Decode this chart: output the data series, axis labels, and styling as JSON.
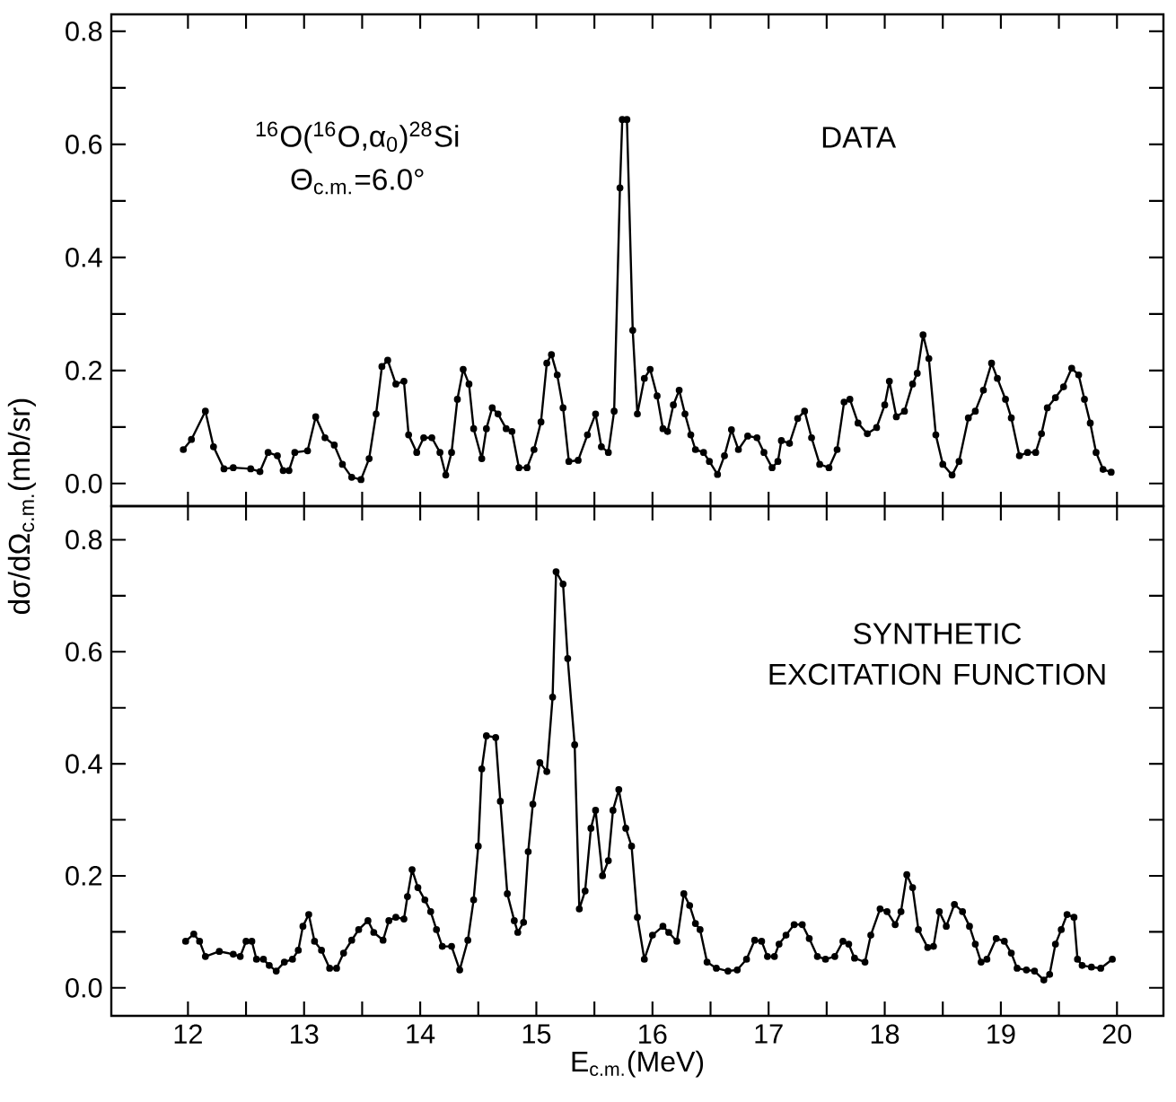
{
  "chart_data": [
    {
      "type": "line",
      "xlim": [
        11.34,
        20.4
      ],
      "ylim": [
        -0.04,
        0.83
      ],
      "xticks": [
        12,
        {
          "value": 12.5,
          "label": null
        },
        13,
        {
          "value": 13.5,
          "label": null
        },
        14,
        {
          "value": 14.5,
          "label": null
        },
        15,
        {
          "value": 15.5,
          "label": null
        },
        16,
        {
          "value": 16.5,
          "label": null
        },
        17,
        {
          "value": 17.5,
          "label": null
        },
        18,
        {
          "value": 18.5,
          "label": null
        },
        19,
        {
          "value": 19.5,
          "label": null
        },
        20
      ],
      "yticks": [
        {
          "value": 0,
          "label": "0.0"
        },
        {
          "value": 0.1,
          "label": null
        },
        0.2,
        {
          "value": 0.3,
          "label": null
        },
        0.4,
        {
          "value": 0.5,
          "label": null
        },
        0.6,
        {
          "value": 0.7,
          "label": null
        },
        0.8
      ],
      "tick_labels": "y",
      "marker": "circle",
      "line_style": "solid",
      "annotations": [
        "$^{16}$O($^{16}$O,α$_{0}$)$^{28}$Si",
        "Θ$_{c.m.}$=6.0°",
        "DATA"
      ],
      "series": [
        {
          "color": "#000000",
          "x": [
            11.96,
            12.03,
            12.15,
            12.22,
            12.31,
            12.39,
            12.54,
            12.62,
            12.69,
            12.77,
            12.82,
            12.87,
            12.92,
            13.03,
            13.1,
            13.18,
            13.26,
            13.33,
            13.41,
            13.49,
            13.56,
            13.62,
            13.67,
            13.72,
            13.79,
            13.86,
            13.9,
            13.97,
            14.03,
            14.1,
            14.17,
            14.22,
            14.27,
            14.32,
            14.37,
            14.42,
            14.46,
            14.53,
            14.57,
            14.62,
            14.67,
            14.74,
            14.79,
            14.85,
            14.92,
            14.98,
            15.04,
            15.09,
            15.13,
            15.18,
            15.23,
            15.28,
            15.36,
            15.44,
            15.51,
            15.56,
            15.62,
            15.67,
            15.72,
            15.74,
            15.78,
            15.83,
            15.87,
            15.93,
            15.98,
            16.04,
            16.09,
            16.13,
            16.18,
            16.23,
            16.28,
            16.33,
            16.37,
            16.44,
            16.49,
            16.56,
            16.62,
            16.68,
            16.74,
            16.82,
            16.9,
            16.96,
            17.03,
            17.08,
            17.11,
            17.18,
            17.25,
            17.31,
            17.37,
            17.44,
            17.52,
            17.59,
            17.65,
            17.7,
            17.77,
            17.85,
            17.93,
            18.0,
            18.04,
            18.1,
            18.17,
            18.24,
            18.28,
            18.33,
            18.38,
            18.44,
            18.5,
            18.58,
            18.64,
            18.72,
            18.78,
            18.85,
            18.92,
            18.97,
            19.04,
            19.09,
            19.16,
            19.23,
            19.3,
            19.35,
            19.4,
            19.47,
            19.54,
            19.61,
            19.67,
            19.72,
            19.77,
            19.82,
            19.88,
            19.95
          ],
          "values": [
            0.06,
            0.078,
            0.128,
            0.065,
            0.026,
            0.028,
            0.026,
            0.021,
            0.055,
            0.049,
            0.023,
            0.023,
            0.055,
            0.058,
            0.118,
            0.081,
            0.068,
            0.034,
            0.011,
            0.007,
            0.044,
            0.123,
            0.207,
            0.218,
            0.176,
            0.181,
            0.086,
            0.055,
            0.081,
            0.081,
            0.055,
            0.015,
            0.055,
            0.149,
            0.202,
            0.176,
            0.097,
            0.044,
            0.097,
            0.134,
            0.123,
            0.097,
            0.092,
            0.028,
            0.028,
            0.06,
            0.109,
            0.213,
            0.228,
            0.192,
            0.134,
            0.039,
            0.041,
            0.086,
            0.123,
            0.065,
            0.055,
            0.128,
            0.523,
            0.644,
            0.644,
            0.271,
            0.123,
            0.186,
            0.202,
            0.155,
            0.097,
            0.092,
            0.139,
            0.165,
            0.123,
            0.086,
            0.06,
            0.055,
            0.039,
            0.016,
            0.049,
            0.095,
            0.06,
            0.084,
            0.081,
            0.055,
            0.028,
            0.039,
            0.076,
            0.071,
            0.115,
            0.128,
            0.081,
            0.034,
            0.028,
            0.06,
            0.144,
            0.149,
            0.107,
            0.088,
            0.099,
            0.139,
            0.181,
            0.118,
            0.128,
            0.176,
            0.195,
            0.263,
            0.221,
            0.086,
            0.034,
            0.015,
            0.039,
            0.116,
            0.128,
            0.165,
            0.213,
            0.186,
            0.149,
            0.116,
            0.049,
            0.055,
            0.055,
            0.088,
            0.134,
            0.152,
            0.171,
            0.204,
            0.192,
            0.149,
            0.107,
            0.055,
            0.025,
            0.02
          ]
        }
      ]
    },
    {
      "type": "line",
      "xlim": [
        11.34,
        20.4
      ],
      "ylim": [
        -0.05,
        0.86
      ],
      "xticks": [
        12,
        {
          "value": 12.5,
          "label": null
        },
        13,
        {
          "value": 13.5,
          "label": null
        },
        14,
        {
          "value": 14.5,
          "label": null
        },
        15,
        {
          "value": 15.5,
          "label": null
        },
        16,
        {
          "value": 16.5,
          "label": null
        },
        17,
        {
          "value": 17.5,
          "label": null
        },
        18,
        {
          "value": 18.5,
          "label": null
        },
        19,
        {
          "value": 19.5,
          "label": null
        },
        20
      ],
      "yticks": [
        {
          "value": 0,
          "label": "0.0"
        },
        {
          "value": 0.1,
          "label": null
        },
        0.2,
        {
          "value": 0.3,
          "label": null
        },
        0.4,
        {
          "value": 0.5,
          "label": null
        },
        0.6,
        {
          "value": 0.7,
          "label": null
        },
        0.8
      ],
      "xlabel": "E$_{c.m.}$(MeV)",
      "ylabel": "dσ/dΩ$_{c.m.}$(mb/sr)",
      "marker": "circle",
      "line_style": "solid",
      "annotations": [
        "SYNTHETIC EXCITATION FUNCTION"
      ],
      "series": [
        {
          "color": "#000000",
          "x": [
            11.98,
            12.05,
            12.1,
            12.15,
            12.27,
            12.39,
            12.45,
            12.5,
            12.55,
            12.59,
            12.65,
            12.7,
            12.76,
            12.83,
            12.9,
            12.95,
            12.99,
            13.04,
            13.09,
            13.15,
            13.22,
            13.28,
            13.34,
            13.41,
            13.47,
            13.55,
            13.6,
            13.68,
            13.73,
            13.79,
            13.86,
            13.89,
            13.93,
            13.98,
            14.04,
            14.09,
            14.14,
            14.19,
            14.27,
            14.34,
            14.41,
            14.46,
            14.5,
            14.53,
            14.57,
            14.65,
            14.69,
            14.75,
            14.81,
            14.84,
            14.89,
            14.93,
            14.97,
            15.03,
            15.09,
            15.14,
            15.17,
            15.23,
            15.27,
            15.33,
            15.37,
            15.42,
            15.47,
            15.51,
            15.57,
            15.62,
            15.66,
            15.71,
            15.77,
            15.82,
            15.87,
            15.93,
            16.0,
            16.09,
            16.14,
            16.21,
            16.27,
            16.32,
            16.37,
            16.41,
            16.47,
            16.55,
            16.65,
            16.73,
            16.81,
            16.88,
            16.94,
            16.99,
            17.05,
            17.09,
            17.15,
            17.22,
            17.29,
            17.35,
            17.42,
            17.49,
            17.57,
            17.64,
            17.69,
            17.74,
            17.83,
            17.88,
            17.96,
            18.02,
            18.09,
            18.14,
            18.19,
            18.24,
            18.29,
            18.37,
            18.42,
            18.47,
            18.53,
            18.6,
            18.67,
            18.73,
            18.78,
            18.83,
            18.88,
            18.96,
            19.03,
            19.09,
            19.14,
            19.22,
            19.29,
            19.37,
            19.42,
            19.47,
            19.52,
            19.57,
            19.63,
            19.66,
            19.7,
            19.78,
            19.86,
            19.96
          ],
          "values": [
            0.083,
            0.096,
            0.083,
            0.056,
            0.065,
            0.06,
            0.056,
            0.083,
            0.083,
            0.051,
            0.051,
            0.04,
            0.03,
            0.046,
            0.051,
            0.067,
            0.11,
            0.131,
            0.083,
            0.067,
            0.035,
            0.035,
            0.062,
            0.085,
            0.104,
            0.12,
            0.099,
            0.085,
            0.12,
            0.126,
            0.123,
            0.163,
            0.211,
            0.179,
            0.157,
            0.136,
            0.104,
            0.074,
            0.074,
            0.032,
            0.085,
            0.157,
            0.253,
            0.391,
            0.45,
            0.447,
            0.333,
            0.168,
            0.12,
            0.099,
            0.117,
            0.243,
            0.328,
            0.402,
            0.386,
            0.519,
            0.743,
            0.721,
            0.588,
            0.434,
            0.141,
            0.173,
            0.285,
            0.317,
            0.2,
            0.227,
            0.317,
            0.354,
            0.285,
            0.253,
            0.126,
            0.051,
            0.094,
            0.11,
            0.099,
            0.083,
            0.168,
            0.147,
            0.115,
            0.104,
            0.046,
            0.035,
            0.03,
            0.032,
            0.051,
            0.085,
            0.083,
            0.056,
            0.056,
            0.078,
            0.094,
            0.113,
            0.113,
            0.088,
            0.056,
            0.051,
            0.056,
            0.083,
            0.078,
            0.053,
            0.046,
            0.094,
            0.141,
            0.136,
            0.113,
            0.136,
            0.202,
            0.179,
            0.104,
            0.072,
            0.074,
            0.136,
            0.11,
            0.149,
            0.136,
            0.11,
            0.078,
            0.046,
            0.051,
            0.088,
            0.083,
            0.062,
            0.035,
            0.032,
            0.03,
            0.014,
            0.024,
            0.078,
            0.104,
            0.131,
            0.126,
            0.051,
            0.04,
            0.037,
            0.035,
            0.051
          ]
        }
      ]
    }
  ]
}
